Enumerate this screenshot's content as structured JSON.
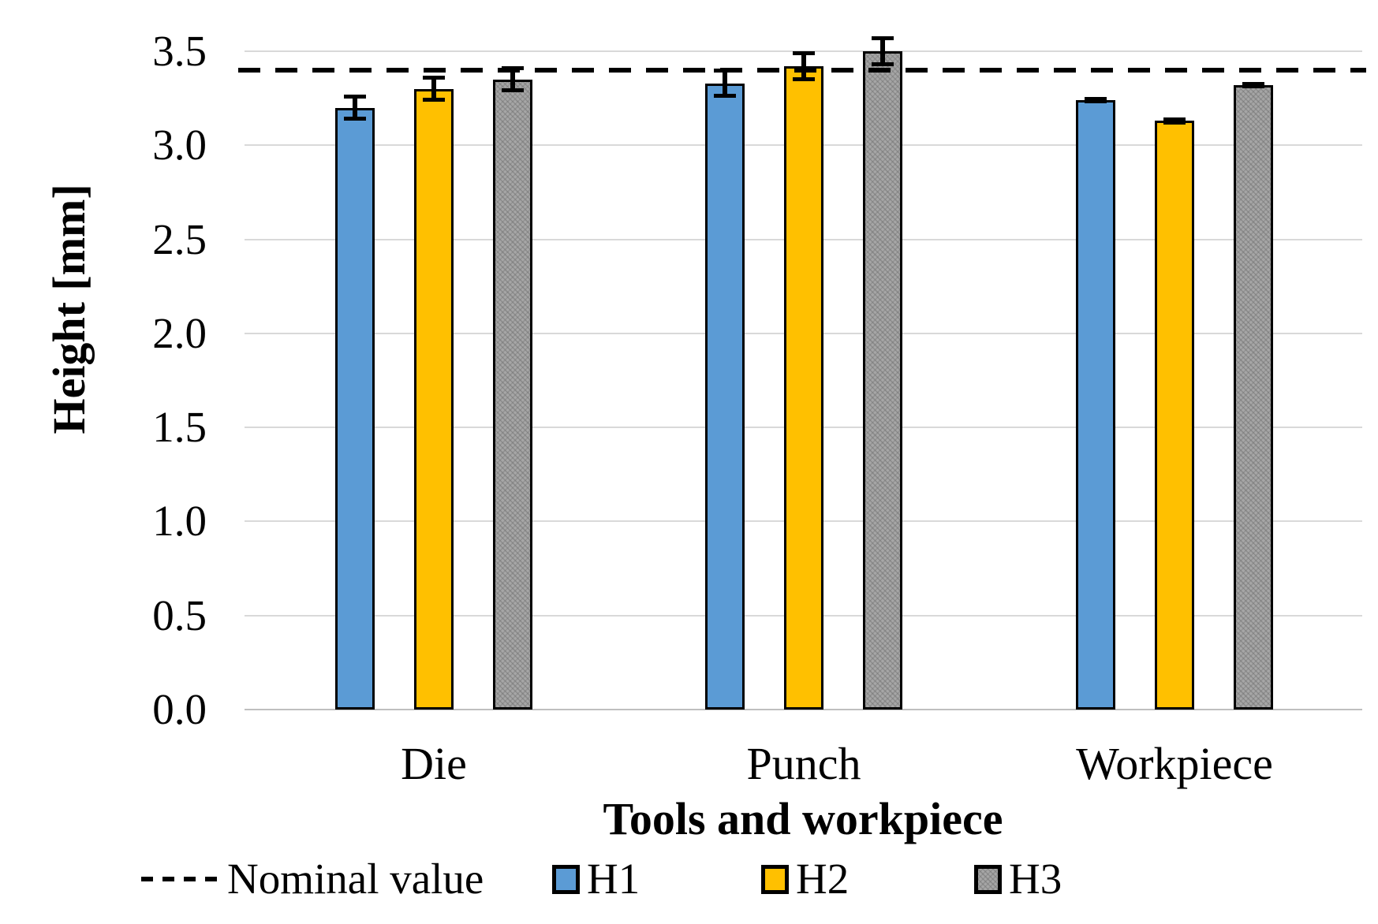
{
  "chart_data": {
    "type": "bar",
    "title": "",
    "xlabel": "Tools and workpiece",
    "ylabel": "Height [mm]",
    "categories": [
      "Die",
      "Punch",
      "Workpiece"
    ],
    "series": [
      {
        "name": "H1",
        "color": "#5B9BD5",
        "pattern": false,
        "values": [
          3.2,
          3.33,
          3.24
        ],
        "errors": [
          0.06,
          0.07,
          0.01
        ]
      },
      {
        "name": "H2",
        "color": "#FFC000",
        "pattern": false,
        "values": [
          3.3,
          3.42,
          3.13
        ],
        "errors": [
          0.06,
          0.07,
          0.01
        ]
      },
      {
        "name": "H3",
        "color": "#A6A6A6",
        "pattern": true,
        "values": [
          3.35,
          3.5,
          3.32
        ],
        "errors": [
          0.06,
          0.07,
          0.01
        ]
      }
    ],
    "nominal_line": {
      "label": "Nominal value",
      "value": 3.4,
      "color": "#000000",
      "style": "dashed"
    },
    "ylim": [
      0.0,
      3.5
    ],
    "ytick_step": 0.5,
    "yticks": [
      "0.0",
      "0.5",
      "1.0",
      "1.5",
      "2.0",
      "2.5",
      "3.0",
      "3.5"
    ],
    "grid": true,
    "gridline_color": "#D9D9D9",
    "legend_position": "bottom"
  }
}
